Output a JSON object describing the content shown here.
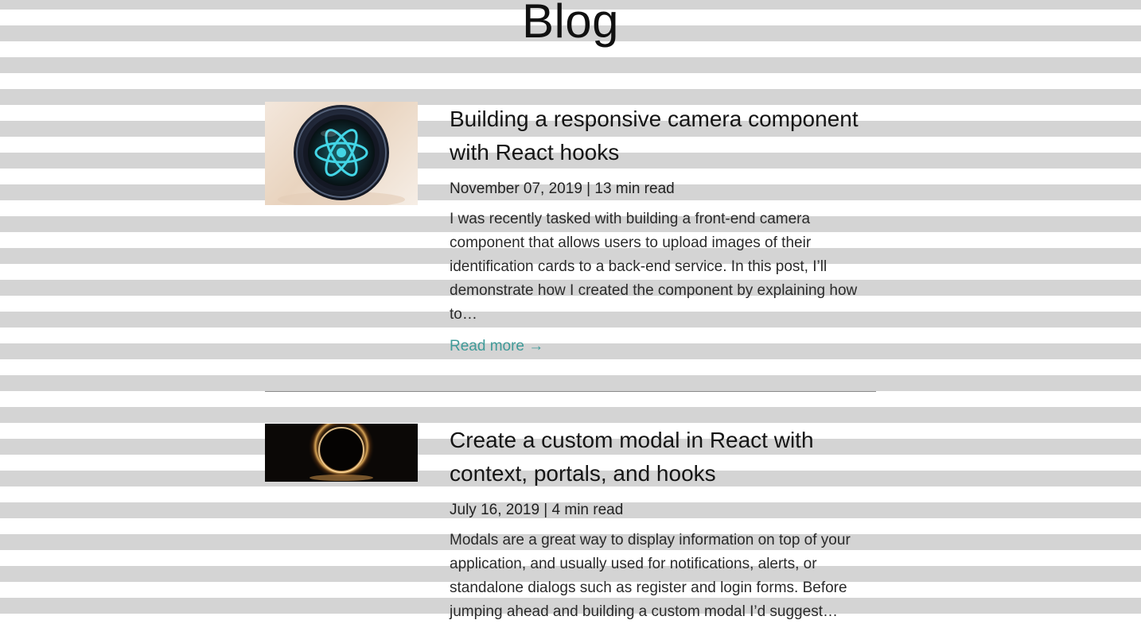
{
  "page": {
    "title": "Blog"
  },
  "posts": [
    {
      "title": "Building a responsive camera component with React hooks",
      "meta": "November 07, 2019 | 13 min read",
      "excerpt": "I was recently tasked with building a front-end camera component that allows users to upload images of their identification cards to a back-end service. In this post, I’ll demonstrate how I created the component by explaining how to…",
      "read_more": "Read more →",
      "thumbnail_icon": "react-camera-lens-icon"
    },
    {
      "title": "Create a custom modal in React with context, portals, and hooks",
      "meta": "July 16, 2019 | 4 min read",
      "excerpt": "Modals are a great way to display information on top of your application, and usually used for notifications, alerts, or standalone dialogs such as register and login forms. Before jumping ahead and building a custom modal I’d suggest…",
      "thumbnail_icon": "glowing-ring-icon"
    }
  ],
  "colors": {
    "link": "#3f9a98",
    "stripe": "#d4d4d4",
    "divider": "#8a8a8a"
  }
}
